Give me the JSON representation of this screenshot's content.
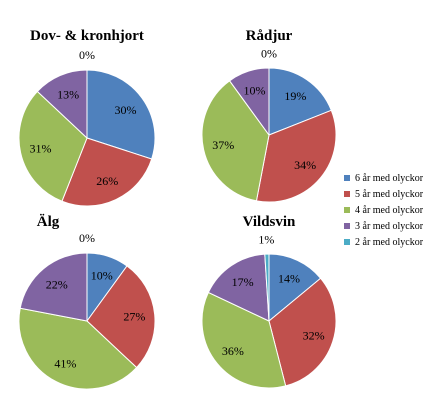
{
  "chart_data": [
    {
      "type": "pie",
      "title": "Dov- & kronhjort",
      "categories": [
        "6 år med olyckor",
        "5 år med olyckor",
        "4 år med olyckor",
        "3 år med olyckor",
        "2 år med olyckor"
      ],
      "values": [
        30,
        26,
        31,
        13,
        0
      ],
      "labels": [
        "30%",
        "26%",
        "31%",
        "13%",
        "0%"
      ]
    },
    {
      "type": "pie",
      "title": "Rådjur",
      "categories": [
        "6 år med olyckor",
        "5 år med olyckor",
        "4 år med olyckor",
        "3 år med olyckor",
        "2 år med olyckor"
      ],
      "values": [
        19,
        34,
        37,
        10,
        0
      ],
      "labels": [
        "19%",
        "34%",
        "37%",
        "10%",
        "0%"
      ]
    },
    {
      "type": "pie",
      "title": "Älg",
      "categories": [
        "6 år med olyckor",
        "5 år med olyckor",
        "4 år med olyckor",
        "3 år med olyckor",
        "2 år med olyckor"
      ],
      "values": [
        10,
        27,
        41,
        22,
        0
      ],
      "labels": [
        "10%",
        "27%",
        "41%",
        "22%",
        "0%"
      ]
    },
    {
      "type": "pie",
      "title": "Vildsvin",
      "categories": [
        "6 år med olyckor",
        "5 år med olyckor",
        "4 år med olyckor",
        "3 år med olyckor",
        "2 år med olyckor"
      ],
      "values": [
        14,
        32,
        36,
        17,
        1
      ],
      "labels": [
        "14%",
        "32%",
        "36%",
        "17%",
        "1%"
      ]
    }
  ],
  "legend": {
    "placement": "right",
    "items": [
      {
        "label": "6 år med olyckor",
        "color": "#4f81bd"
      },
      {
        "label": "5 år med olyckor",
        "color": "#c0504d"
      },
      {
        "label": "4 år med olyckor",
        "color": "#9bbb59"
      },
      {
        "label": "3 år med olyckor",
        "color": "#8064a2"
      },
      {
        "label": "2 år med olyckor",
        "color": "#4bacc6"
      }
    ]
  }
}
